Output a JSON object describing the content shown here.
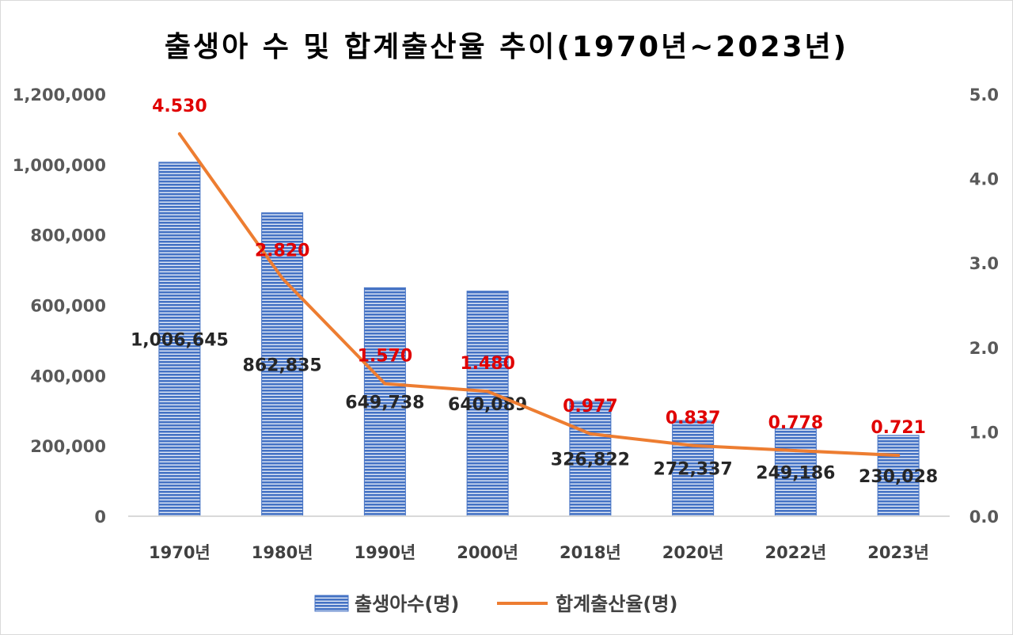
{
  "colors": {
    "bar_fill": "#4472c4",
    "bar_stripe": "#ffffff",
    "line": "#ed7d31",
    "line_label": "#e00000",
    "grid_axis": "#d9d9d9"
  },
  "chart_data": {
    "type": "bar",
    "title": "출생아 수 및 합계출산율 추이(1970년~2023년)",
    "categories": [
      "1970년",
      "1980년",
      "1990년",
      "2000년",
      "2018년",
      "2020년",
      "2022년",
      "2023년"
    ],
    "series": [
      {
        "name": "출생아수(명)",
        "type": "bar",
        "axis": "left",
        "values": [
          1006645,
          862835,
          649738,
          640089,
          326822,
          272337,
          249186,
          230028
        ],
        "labels": [
          "1,006,645",
          "862,835",
          "649,738",
          "640,089",
          "326,822",
          "272,337",
          "249,186",
          "230,028"
        ]
      },
      {
        "name": "합계출산율(명)",
        "type": "line",
        "axis": "right",
        "values": [
          4.53,
          2.82,
          1.57,
          1.48,
          0.977,
          0.837,
          0.778,
          0.721
        ],
        "labels": [
          "4.530",
          "2.820",
          "1.570",
          "1.480",
          "0.977",
          "0.837",
          "0.778",
          "0.721"
        ]
      }
    ],
    "y_left": {
      "min": 0,
      "max": 1200000,
      "ticks": [
        0,
        200000,
        400000,
        600000,
        800000,
        1000000,
        1200000
      ],
      "tick_labels": [
        "0",
        "200,000",
        "400,000",
        "600,000",
        "800,000",
        "1,000,000",
        "1,200,000"
      ]
    },
    "y_right": {
      "min": 0,
      "max": 5,
      "ticks": [
        0,
        1,
        2,
        3,
        4,
        5
      ],
      "tick_labels": [
        "0.0",
        "1.0",
        "2.0",
        "3.0",
        "4.0",
        "5.0"
      ]
    },
    "grid": false,
    "legend": {
      "position": "bottom",
      "items": [
        "출생아수(명)",
        "합계출산율(명)"
      ]
    }
  }
}
